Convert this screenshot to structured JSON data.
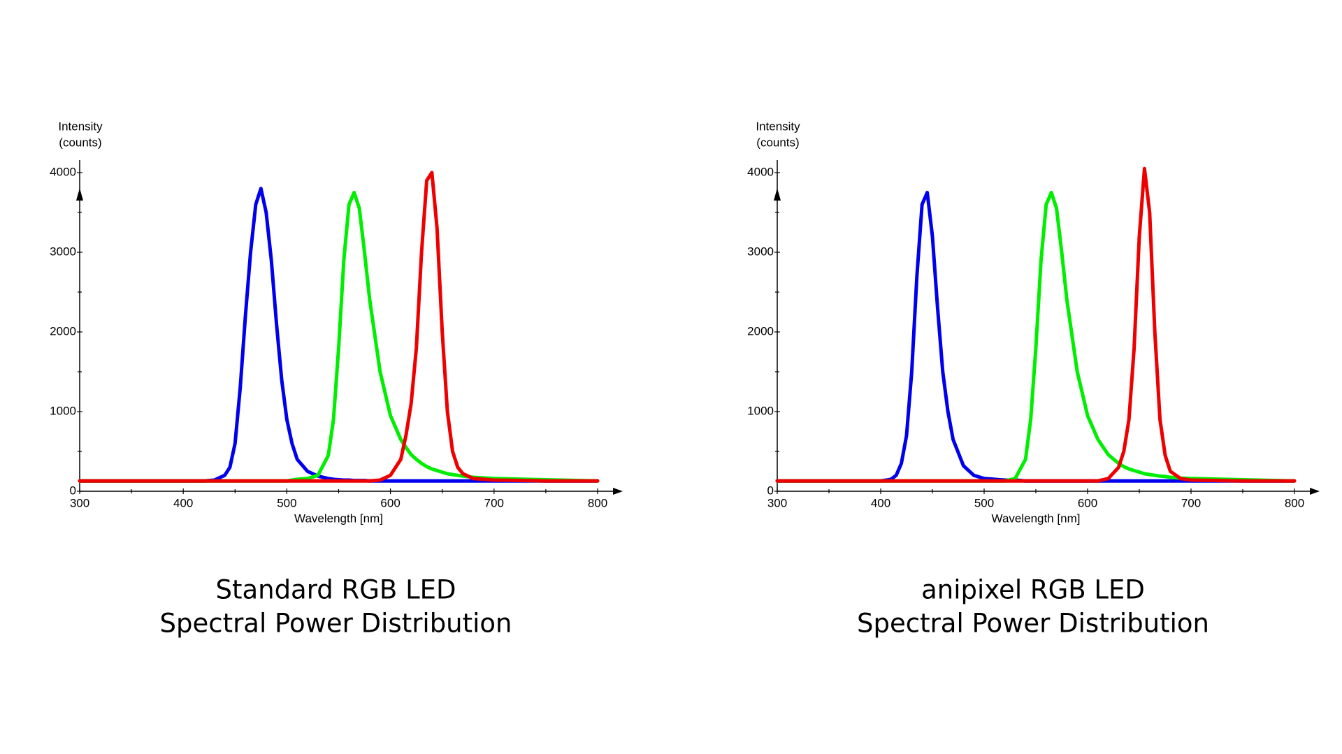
{
  "chart_data": [
    {
      "type": "line",
      "title": "Standard RGB LED",
      "subtitle": "Spectral Power Distribution",
      "xlabel": "Wavelength [nm]",
      "ylabel": [
        "Intensity",
        "(counts)"
      ],
      "xlim": [
        300,
        800
      ],
      "xticks": [
        300,
        400,
        500,
        600,
        700,
        800
      ],
      "ylim": [
        0,
        4000
      ],
      "yticks": [
        0,
        1000,
        2000,
        3000,
        4000
      ],
      "x": [
        300,
        350,
        400,
        420,
        430,
        440,
        445,
        450,
        455,
        460,
        465,
        470,
        475,
        480,
        485,
        490,
        495,
        500,
        505,
        510,
        520,
        530,
        540,
        545,
        550,
        555,
        560,
        565,
        570,
        575,
        580,
        590,
        600,
        610,
        615,
        620,
        625,
        630,
        635,
        640,
        645,
        650,
        655,
        660,
        665,
        670,
        680,
        700,
        750,
        800
      ],
      "series": [
        {
          "color": "#0000ee",
          "values": [
            130,
            130,
            130,
            130,
            140,
            200,
            300,
            600,
            1300,
            2200,
            3000,
            3600,
            3800,
            3500,
            2900,
            2100,
            1400,
            900,
            600,
            400,
            250,
            190,
            160,
            150,
            145,
            140,
            140,
            135,
            135,
            135,
            130,
            130,
            130,
            130,
            130,
            130,
            130,
            130,
            130,
            130,
            130,
            130,
            130,
            130,
            130,
            130,
            130,
            130,
            130,
            130
          ]
        },
        {
          "color": "#00ee00",
          "values": [
            130,
            130,
            130,
            130,
            130,
            130,
            130,
            130,
            130,
            130,
            130,
            130,
            130,
            130,
            130,
            130,
            130,
            130,
            140,
            150,
            160,
            200,
            450,
            900,
            1800,
            2900,
            3600,
            3750,
            3550,
            3000,
            2400,
            1500,
            950,
            650,
            550,
            460,
            400,
            350,
            310,
            280,
            260,
            240,
            220,
            210,
            200,
            190,
            175,
            160,
            145,
            130
          ]
        },
        {
          "color": "#ee0000",
          "values": [
            130,
            130,
            130,
            130,
            130,
            130,
            130,
            130,
            130,
            130,
            130,
            130,
            130,
            130,
            130,
            130,
            130,
            130,
            130,
            130,
            130,
            130,
            130,
            130,
            130,
            130,
            130,
            130,
            130,
            130,
            130,
            140,
            200,
            400,
            700,
            1100,
            1800,
            3000,
            3900,
            4000,
            3300,
            2000,
            1000,
            500,
            300,
            220,
            160,
            140,
            130,
            130
          ]
        }
      ]
    },
    {
      "type": "line",
      "title": "anipixel RGB LED",
      "subtitle": "Spectral Power Distribution",
      "xlabel": "Wavelength [nm]",
      "ylabel": [
        "Intensity",
        "(counts)"
      ],
      "xlim": [
        300,
        800
      ],
      "xticks": [
        300,
        400,
        500,
        600,
        700,
        800
      ],
      "ylim": [
        0,
        4000
      ],
      "yticks": [
        0,
        1000,
        2000,
        3000,
        4000
      ],
      "x": [
        300,
        350,
        400,
        410,
        415,
        420,
        425,
        430,
        435,
        440,
        445,
        450,
        455,
        460,
        465,
        470,
        480,
        490,
        500,
        510,
        520,
        530,
        540,
        545,
        550,
        555,
        560,
        565,
        570,
        575,
        580,
        590,
        600,
        610,
        620,
        630,
        635,
        640,
        645,
        650,
        655,
        660,
        665,
        670,
        675,
        680,
        690,
        700,
        750,
        800
      ],
      "series": [
        {
          "color": "#0000ee",
          "values": [
            130,
            130,
            130,
            150,
            200,
            350,
            700,
            1500,
            2700,
            3600,
            3750,
            3200,
            2300,
            1500,
            1000,
            650,
            320,
            200,
            160,
            150,
            140,
            140,
            130,
            130,
            130,
            130,
            130,
            130,
            130,
            130,
            130,
            130,
            130,
            130,
            130,
            130,
            130,
            130,
            130,
            130,
            130,
            130,
            130,
            130,
            130,
            130,
            130,
            130,
            130,
            130
          ]
        },
        {
          "color": "#00ee00",
          "values": [
            130,
            130,
            130,
            130,
            130,
            130,
            130,
            130,
            130,
            130,
            130,
            130,
            130,
            130,
            130,
            130,
            130,
            130,
            130,
            130,
            130,
            160,
            400,
            900,
            1800,
            2900,
            3600,
            3750,
            3550,
            3000,
            2400,
            1500,
            950,
            650,
            460,
            350,
            310,
            280,
            260,
            240,
            220,
            210,
            200,
            190,
            185,
            175,
            165,
            160,
            145,
            130
          ]
        },
        {
          "color": "#ee0000",
          "values": [
            130,
            130,
            130,
            130,
            130,
            130,
            130,
            130,
            130,
            130,
            130,
            130,
            130,
            130,
            130,
            130,
            130,
            130,
            130,
            130,
            130,
            130,
            130,
            130,
            130,
            130,
            130,
            130,
            130,
            130,
            130,
            130,
            130,
            130,
            160,
            300,
            500,
            900,
            1800,
            3200,
            4050,
            3500,
            2000,
            900,
            450,
            250,
            160,
            140,
            130,
            130
          ]
        }
      ]
    }
  ]
}
